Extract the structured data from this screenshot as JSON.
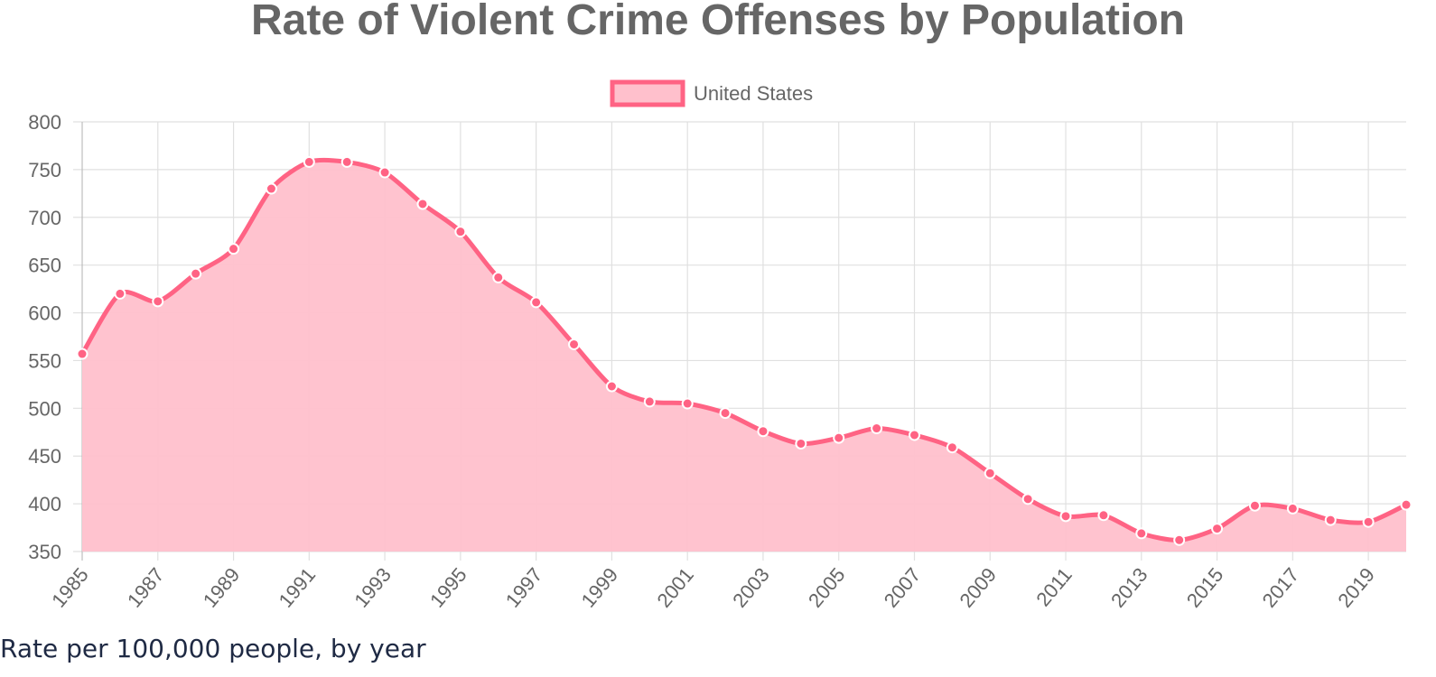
{
  "chart_data": {
    "type": "area",
    "title": "Rate of Violent Crime Offenses by Population",
    "xlabel": "",
    "ylabel": "",
    "ylim": [
      350,
      800
    ],
    "yticks": [
      800,
      750,
      700,
      650,
      600,
      550,
      500,
      450,
      400,
      350
    ],
    "grid": true,
    "legend_position": "top-center",
    "x": [
      1985,
      1986,
      1987,
      1988,
      1989,
      1990,
      1991,
      1992,
      1993,
      1994,
      1995,
      1996,
      1997,
      1998,
      1999,
      2000,
      2001,
      2002,
      2003,
      2004,
      2005,
      2006,
      2007,
      2008,
      2009,
      2010,
      2011,
      2012,
      2013,
      2014,
      2015,
      2016,
      2017,
      2018,
      2019,
      2020
    ],
    "xtick_labels": [
      "1985",
      "1987",
      "1989",
      "1991",
      "1993",
      "1995",
      "1997",
      "1999",
      "2001",
      "2003",
      "2005",
      "2007",
      "2009",
      "2011",
      "2013",
      "2015",
      "2017",
      "2019"
    ],
    "series": [
      {
        "name": "United States",
        "values": [
          557,
          620,
          612,
          641,
          667,
          730,
          758,
          758,
          747,
          714,
          685,
          637,
          611,
          567,
          523,
          507,
          505,
          495,
          476,
          463,
          469,
          479,
          472,
          459,
          432,
          405,
          387,
          388,
          369,
          362,
          374,
          398,
          395,
          383,
          381,
          399
        ],
        "line_color": "#ff6384",
        "fill_color": "#ffc0cc"
      }
    ]
  },
  "caption": "Rate per 100,000 people, by year"
}
